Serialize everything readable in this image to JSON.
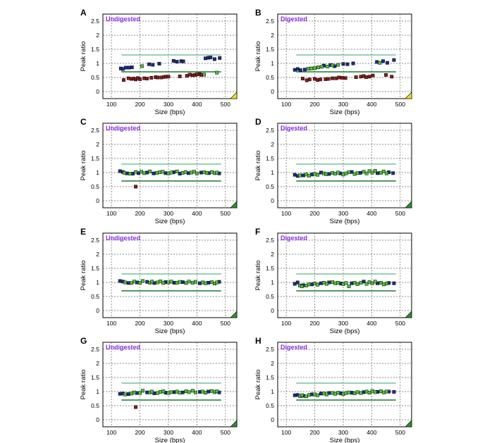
{
  "figure": {
    "ref_levels": [
      0.7,
      1.3
    ],
    "colors": {
      "panel_border": "#000000",
      "grid": "#666666",
      "ref_line_high": "#33a06f",
      "ref_line_low": "#1a7a2e",
      "point_blue": "#1f2a8a",
      "point_green": "#4cc23a",
      "point_red": "#8b1a1a",
      "point_edge": "#000000",
      "label_purple": "#8a2be2",
      "corner_yellow": "#f0e020",
      "corner_green": "#2f8f2f"
    }
  },
  "chart_data": [
    {
      "letter": "A",
      "type": "scatter",
      "title": "Undigested",
      "xlabel": "Size (bps)",
      "ylabel": "Peak ratio",
      "xlim": [
        70,
        540
      ],
      "ylim": [
        -0.25,
        2.75
      ],
      "xticks": [
        "100",
        "200",
        "300",
        "400",
        "500"
      ],
      "yticks": [
        "0",
        "0.5",
        "1",
        "1.5",
        "2",
        "2.5"
      ],
      "grid": true,
      "corner_marker": "yellow",
      "series": [
        {
          "color": "blue",
          "x": [
            133,
            140,
            150,
            162,
            172,
            232,
            245,
            268,
            318,
            330,
            345,
            352,
            430,
            440,
            448,
            462,
            480
          ],
          "y": [
            0.82,
            0.8,
            0.85,
            0.85,
            0.86,
            0.97,
            0.95,
            0.99,
            1.09,
            1.06,
            1.08,
            1.07,
            1.18,
            1.2,
            1.21,
            1.15,
            1.19
          ]
        },
        {
          "color": "green",
          "x": [
            207,
            425,
            470
          ],
          "y": [
            0.9,
            0.6,
            0.67
          ]
        },
        {
          "color": "red",
          "x": [
            143,
            160,
            170,
            178,
            185,
            192,
            200,
            215,
            225,
            240,
            255,
            262,
            275,
            285,
            292,
            300,
            340,
            365,
            375,
            385,
            393,
            400,
            410,
            415
          ],
          "y": [
            0.41,
            0.47,
            0.45,
            0.46,
            0.43,
            0.48,
            0.44,
            0.47,
            0.46,
            0.49,
            0.51,
            0.5,
            0.5,
            0.52,
            0.53,
            0.53,
            0.54,
            0.56,
            0.6,
            0.58,
            0.59,
            0.61,
            0.62,
            0.59
          ]
        }
      ]
    },
    {
      "letter": "B",
      "type": "scatter",
      "title": "Digested",
      "xlabel": "Size (bps)",
      "ylabel": "Peak ratio",
      "xlim": [
        70,
        540
      ],
      "ylim": [
        -0.25,
        2.75
      ],
      "xticks": [
        "100",
        "200",
        "300",
        "400",
        "500"
      ],
      "yticks": [
        "0",
        "0.5",
        "1",
        "1.5",
        "2",
        "2.5"
      ],
      "grid": true,
      "corner_marker": "yellow",
      "series": [
        {
          "color": "blue",
          "x": [
            130,
            140,
            150,
            165,
            232,
            255,
            270,
            300,
            315,
            335,
            418,
            440,
            455,
            478
          ],
          "y": [
            0.77,
            0.8,
            0.76,
            0.78,
            0.92,
            0.94,
            0.9,
            0.98,
            0.97,
            1.0,
            1.05,
            1.08,
            1.02,
            1.12
          ]
        },
        {
          "color": "green",
          "x": [
            178,
            188,
            200,
            212,
            225,
            245,
            262,
            282,
            428
          ],
          "y": [
            0.81,
            0.82,
            0.83,
            0.86,
            0.88,
            0.89,
            0.93,
            0.95,
            1.02
          ]
        },
        {
          "color": "red",
          "x": [
            158,
            172,
            182,
            200,
            210,
            220,
            238,
            248,
            262,
            275,
            285,
            296,
            308,
            345,
            362,
            372,
            380,
            392,
            404,
            450,
            470
          ],
          "y": [
            0.46,
            0.4,
            0.43,
            0.45,
            0.41,
            0.43,
            0.44,
            0.45,
            0.47,
            0.47,
            0.5,
            0.49,
            0.48,
            0.51,
            0.53,
            0.55,
            0.51,
            0.53,
            0.57,
            0.59,
            0.53
          ]
        }
      ]
    },
    {
      "letter": "C",
      "type": "scatter",
      "title": "Undigested",
      "xlabel": "Size (bps)",
      "ylabel": "Peak ratio",
      "xlim": [
        70,
        540
      ],
      "ylim": [
        -0.25,
        2.75
      ],
      "xticks": [
        "100",
        "200",
        "300",
        "400",
        "500"
      ],
      "yticks": [
        "0",
        "0.5",
        "1",
        "1.5",
        "2",
        "2.5"
      ],
      "grid": true,
      "corner_marker": "green",
      "series": [
        {
          "color": "blue",
          "x": [
            130,
            140,
            155,
            175,
            195,
            225,
            248,
            290,
            318,
            340,
            370,
            415,
            442,
            478
          ],
          "y": [
            1.05,
            1.02,
            0.97,
            0.96,
            0.98,
            1.0,
            0.97,
            0.98,
            1.01,
            0.96,
            0.98,
            1.0,
            0.98,
            0.97
          ]
        },
        {
          "color": "green",
          "x": [
            145,
            165,
            185,
            205,
            215,
            235,
            260,
            270,
            280,
            300,
            310,
            330,
            350,
            360,
            380,
            390,
            400,
            425,
            435,
            452,
            462,
            470
          ],
          "y": [
            0.99,
            0.96,
            1.02,
            1.03,
            0.98,
            1.04,
            0.99,
            1.01,
            1.03,
            0.97,
            1.0,
            1.04,
            0.99,
            1.02,
            1.0,
            1.03,
            0.97,
            1.01,
            0.99,
            1.02,
            0.98,
            1.0
          ]
        },
        {
          "color": "red",
          "x": [
            185
          ],
          "y": [
            0.5
          ]
        }
      ]
    },
    {
      "letter": "D",
      "type": "scatter",
      "title": "Digested",
      "xlabel": "Size (bps)",
      "ylabel": "Peak ratio",
      "xlim": [
        70,
        540
      ],
      "ylim": [
        -0.25,
        2.75
      ],
      "xticks": [
        "100",
        "200",
        "300",
        "400",
        "500"
      ],
      "yticks": [
        "0",
        "0.5",
        "1",
        "1.5",
        "2",
        "2.5"
      ],
      "grid": true,
      "corner_marker": "green",
      "series": [
        {
          "color": "blue",
          "x": [
            130,
            140,
            160,
            190,
            222,
            250,
            290,
            330,
            360,
            420,
            460,
            475
          ],
          "y": [
            0.92,
            0.88,
            0.9,
            0.93,
            1.0,
            0.95,
            0.97,
            1.02,
            0.99,
            0.98,
            1.01,
            0.98
          ]
        },
        {
          "color": "green",
          "x": [
            148,
            170,
            180,
            200,
            210,
            232,
            240,
            262,
            272,
            282,
            300,
            310,
            320,
            340,
            350,
            372,
            382,
            392,
            402,
            412,
            432,
            442,
            452
          ],
          "y": [
            0.9,
            0.93,
            0.89,
            0.95,
            0.92,
            0.97,
            0.94,
            0.99,
            0.96,
            1.0,
            0.93,
            0.97,
            1.01,
            0.95,
            0.98,
            1.03,
            0.97,
            1.05,
            1.0,
            1.06,
            0.99,
            1.04,
            0.97
          ]
        }
      ]
    },
    {
      "letter": "E",
      "type": "scatter",
      "title": "Undigested",
      "xlabel": "Size (bps)",
      "ylabel": "Peak ratio",
      "xlim": [
        70,
        540
      ],
      "ylim": [
        -0.25,
        2.75
      ],
      "xticks": [
        "100",
        "200",
        "300",
        "400",
        "500"
      ],
      "yticks": [
        "0",
        "0.5",
        "1",
        "1.5",
        "2",
        "2.5"
      ],
      "grid": true,
      "corner_marker": "green",
      "series": [
        {
          "color": "blue",
          "x": [
            130,
            140,
            160,
            190,
            225,
            250,
            290,
            320,
            350,
            410,
            440,
            478
          ],
          "y": [
            1.05,
            1.03,
            0.98,
            1.0,
            1.02,
            0.98,
            1.01,
            0.99,
            1.01,
            0.97,
            0.99,
            1.02
          ]
        },
        {
          "color": "green",
          "x": [
            148,
            170,
            180,
            200,
            210,
            235,
            242,
            262,
            272,
            282,
            300,
            310,
            330,
            340,
            362,
            372,
            385,
            395,
            420,
            430,
            452,
            462,
            470
          ],
          "y": [
            1.0,
            0.98,
            1.03,
            0.99,
            1.05,
            0.99,
            1.03,
            1.0,
            1.04,
            0.98,
            1.0,
            1.03,
            0.99,
            1.02,
            0.98,
            1.03,
            0.99,
            1.02,
            1.0,
            0.97,
            1.01,
            0.96,
            1.0
          ]
        }
      ]
    },
    {
      "letter": "F",
      "type": "scatter",
      "title": "Digested",
      "xlabel": "Size (bps)",
      "ylabel": "Peak ratio",
      "xlim": [
        70,
        540
      ],
      "ylim": [
        -0.25,
        2.75
      ],
      "xticks": [
        "100",
        "200",
        "300",
        "400",
        "500"
      ],
      "yticks": [
        "0",
        "0.5",
        "1",
        "1.5",
        "2",
        "2.5"
      ],
      "grid": true,
      "corner_marker": "green",
      "series": [
        {
          "color": "blue",
          "x": [
            130,
            140,
            160,
            190,
            222,
            250,
            292,
            330,
            372,
            420,
            460,
            478
          ],
          "y": [
            0.95,
            1.0,
            0.9,
            0.93,
            0.97,
            1.0,
            0.96,
            0.97,
            1.03,
            0.97,
            0.98,
            0.97
          ]
        },
        {
          "color": "green",
          "x": [
            148,
            155,
            170,
            180,
            200,
            210,
            232,
            242,
            262,
            272,
            282,
            300,
            310,
            320,
            340,
            350,
            362,
            382,
            392,
            402,
            412,
            432,
            442,
            452
          ],
          "y": [
            0.89,
            0.86,
            0.89,
            0.93,
            0.96,
            0.92,
            0.99,
            0.95,
            1.01,
            0.97,
            0.99,
            0.94,
            0.98,
            0.86,
            0.99,
            0.94,
            0.99,
            0.95,
            1.01,
            0.97,
            1.03,
            0.99,
            0.93,
            0.96
          ]
        }
      ]
    },
    {
      "letter": "G",
      "type": "scatter",
      "title": "Undigested",
      "xlabel": "Size (bps)",
      "ylabel": "Peak ratio",
      "xlim": [
        70,
        540
      ],
      "ylim": [
        -0.25,
        2.75
      ],
      "xticks": [
        "100",
        "200",
        "300",
        "400",
        "500"
      ],
      "yticks": [
        "0",
        "0.5",
        "1",
        "1.5",
        "2",
        "2.5"
      ],
      "grid": true,
      "corner_marker": "green",
      "series": [
        {
          "color": "blue",
          "x": [
            130,
            140,
            160,
            190,
            225,
            250,
            290,
            320,
            350,
            410,
            440,
            478
          ],
          "y": [
            0.92,
            0.93,
            0.91,
            0.95,
            0.97,
            0.94,
            0.96,
            0.98,
            0.97,
            0.99,
            1.0,
            0.97
          ]
        },
        {
          "color": "green",
          "x": [
            148,
            170,
            180,
            200,
            210,
            235,
            242,
            262,
            272,
            282,
            300,
            310,
            330,
            340,
            362,
            372,
            385,
            395,
            420,
            430,
            452,
            462,
            470
          ],
          "y": [
            0.9,
            0.93,
            0.97,
            0.95,
            1.03,
            0.97,
            1.0,
            0.95,
            0.99,
            1.01,
            0.95,
            0.98,
            1.0,
            0.96,
            1.01,
            0.98,
            1.03,
            0.97,
            1.0,
            0.96,
            1.02,
            0.98,
            1.01
          ]
        },
        {
          "color": "red",
          "x": [
            185
          ],
          "y": [
            0.45
          ]
        }
      ]
    },
    {
      "letter": "H",
      "type": "scatter",
      "title": "Digested",
      "xlabel": "Size (bps)",
      "ylabel": "Peak ratio",
      "xlim": [
        70,
        540
      ],
      "ylim": [
        -0.25,
        2.75
      ],
      "xticks": [
        "100",
        "200",
        "300",
        "400",
        "500"
      ],
      "yticks": [
        "0",
        "0.5",
        "1",
        "1.5",
        "2",
        "2.5"
      ],
      "grid": true,
      "corner_marker": "green",
      "series": [
        {
          "color": "blue",
          "x": [
            130,
            140,
            160,
            190,
            222,
            250,
            292,
            330,
            372,
            420,
            460,
            478
          ],
          "y": [
            0.87,
            0.88,
            0.85,
            0.9,
            0.93,
            0.95,
            0.94,
            0.96,
            0.98,
            0.99,
            1.0,
            0.99
          ]
        },
        {
          "color": "green",
          "x": [
            148,
            155,
            170,
            180,
            200,
            210,
            232,
            242,
            262,
            272,
            282,
            300,
            310,
            320,
            340,
            350,
            362,
            382,
            392,
            402,
            412,
            432,
            442,
            452
          ],
          "y": [
            0.84,
            0.87,
            0.83,
            0.88,
            0.9,
            0.87,
            0.93,
            0.9,
            0.95,
            0.92,
            0.96,
            0.91,
            0.95,
            0.97,
            0.94,
            0.98,
            0.95,
            1.0,
            0.96,
            1.02,
            0.98,
            1.01,
            0.97,
            1.0
          ]
        }
      ]
    }
  ]
}
